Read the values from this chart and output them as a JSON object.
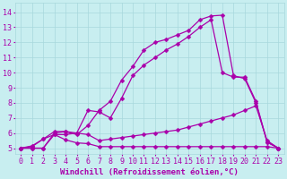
{
  "background_color": "#c8eef0",
  "grid_color": "#a8d8dc",
  "line_color": "#aa00aa",
  "marker": "D",
  "markersize": 2.5,
  "linewidth": 0.9,
  "xlabel": "Windchill (Refroidissement éolien,°C)",
  "xlabel_fontsize": 6.5,
  "tick_fontsize": 6,
  "xlim": [
    -0.5,
    23.5
  ],
  "ylim": [
    4.6,
    14.6
  ],
  "yticks": [
    5,
    6,
    7,
    8,
    9,
    10,
    11,
    12,
    13,
    14
  ],
  "xticks": [
    0,
    1,
    2,
    3,
    4,
    5,
    6,
    7,
    8,
    9,
    10,
    11,
    12,
    13,
    14,
    15,
    16,
    17,
    18,
    19,
    20,
    21,
    22,
    23
  ],
  "lines": [
    {
      "x": [
        0,
        1,
        2,
        3,
        4,
        5,
        6,
        7,
        8,
        9,
        10,
        11,
        12,
        13,
        14,
        15,
        16,
        17,
        18,
        19,
        20,
        21,
        22,
        23
      ],
      "y": [
        5.0,
        5.15,
        5.6,
        5.9,
        5.55,
        5.35,
        5.3,
        5.1,
        5.1,
        5.1,
        5.1,
        5.1,
        5.1,
        5.1,
        5.1,
        5.1,
        5.1,
        5.1,
        5.1,
        5.1,
        5.1,
        5.1,
        5.1,
        5.0
      ]
    },
    {
      "x": [
        0,
        1,
        2,
        3,
        4,
        5,
        6,
        7,
        8,
        9,
        10,
        11,
        12,
        13,
        14,
        15,
        16,
        17,
        18,
        19,
        20,
        21,
        22,
        23
      ],
      "y": [
        5.0,
        5.0,
        5.0,
        5.9,
        5.9,
        6.0,
        5.9,
        5.5,
        5.6,
        5.7,
        5.8,
        5.9,
        6.0,
        6.1,
        6.2,
        6.4,
        6.6,
        6.8,
        7.0,
        7.2,
        7.5,
        7.8,
        5.5,
        5.0
      ]
    },
    {
      "x": [
        0,
        1,
        2,
        3,
        4,
        5,
        6,
        7,
        8,
        9,
        10,
        11,
        12,
        13,
        14,
        15,
        16,
        17,
        18,
        19,
        20,
        21,
        22,
        23
      ],
      "y": [
        5.0,
        5.0,
        5.0,
        6.0,
        6.1,
        6.0,
        7.5,
        7.4,
        7.0,
        8.3,
        9.8,
        10.5,
        11.0,
        11.5,
        11.9,
        12.4,
        13.0,
        13.5,
        10.0,
        9.7,
        9.7,
        8.1,
        5.4,
        5.0
      ]
    },
    {
      "x": [
        0,
        1,
        2,
        3,
        4,
        5,
        6,
        7,
        8,
        9,
        10,
        11,
        12,
        13,
        14,
        15,
        16,
        17,
        18,
        19,
        20,
        21,
        22,
        23
      ],
      "y": [
        5.0,
        5.1,
        5.6,
        6.1,
        6.1,
        5.9,
        6.5,
        7.5,
        8.1,
        9.5,
        10.4,
        11.5,
        12.0,
        12.2,
        12.5,
        12.8,
        13.5,
        13.75,
        13.8,
        9.8,
        9.6,
        8.0,
        5.4,
        5.0
      ]
    }
  ]
}
